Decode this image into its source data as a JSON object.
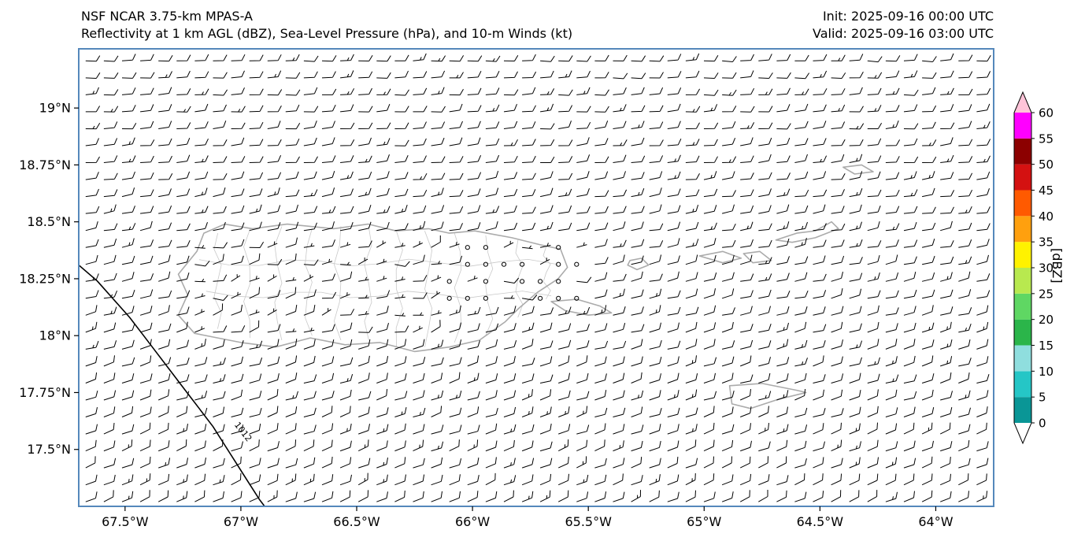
{
  "header": {
    "title_line1": "NSF NCAR 3.75-km MPAS-A",
    "title_line2": "Reflectivity at 1 km AGL (dBZ), Sea-Level Pressure (hPa), and 10-m Winds (kt)",
    "init_label": "Init: 2025-09-16 00:00 UTC",
    "valid_label": "Valid: 2025-09-16 03:00 UTC"
  },
  "chart_data": {
    "type": "map",
    "title": "NSF NCAR 3.75-km MPAS-A — Reflectivity at 1 km AGL (dBZ), Sea-Level Pressure (hPa), and 10-m Winds (kt)",
    "reflectivity_visible": false,
    "extent": {
      "lon_min": -67.7,
      "lon_max": -63.75,
      "lat_min": 17.25,
      "lat_max": 19.26
    },
    "x_ticks": [
      {
        "lon": -67.5,
        "label": "67.5°W"
      },
      {
        "lon": -67.0,
        "label": "67°W"
      },
      {
        "lon": -66.5,
        "label": "66.5°W"
      },
      {
        "lon": -66.0,
        "label": "66°W"
      },
      {
        "lon": -65.5,
        "label": "65.5°W"
      },
      {
        "lon": -65.0,
        "label": "65°W"
      },
      {
        "lon": -64.5,
        "label": "64.5°W"
      },
      {
        "lon": -64.0,
        "label": "64°W"
      }
    ],
    "y_ticks": [
      {
        "lat": 19.0,
        "label": "19°N"
      },
      {
        "lat": 18.75,
        "label": "18.75°N"
      },
      {
        "lat": 18.5,
        "label": "18.5°N"
      },
      {
        "lat": 18.25,
        "label": "18.25°N"
      },
      {
        "lat": 18.0,
        "label": "18°N"
      },
      {
        "lat": 17.75,
        "label": "17.75°N"
      },
      {
        "lat": 17.5,
        "label": "17.5°N"
      }
    ],
    "colorbar": {
      "label": "[dBZ]",
      "tick_values": [
        0,
        5,
        10,
        15,
        20,
        25,
        30,
        35,
        40,
        45,
        50,
        55,
        60
      ],
      "segment_colors": [
        "#0a9696",
        "#25c6c6",
        "#8fdede",
        "#2bb54a",
        "#5fd763",
        "#b8e94f",
        "#fff200",
        "#ffa00e",
        "#ff5a00",
        "#d41111",
        "#8c0000",
        "#ff00ff"
      ],
      "under_color": "#ffffff",
      "over_color": "#ffc4d8"
    },
    "wind_barbs": {
      "units": "kt",
      "spacing_deg_lon": 0.0785,
      "spacing_deg_lat": 0.0745,
      "base_speed_kt": 10,
      "gust_speed_kt": 15,
      "light_speed_kt": 5,
      "calm_threshold_kt": 2.5,
      "mean_direction_from_deg": 80,
      "description": "Easterly trade winds ~10-15 kt over ocean; lighter/variable 0-10 kt over interior Puerto Rico with calm circles over the east-central island"
    },
    "pressure_contour": {
      "value_hpa": 1012,
      "label": "1012",
      "label_lonlat": [
        -67.0,
        17.57
      ],
      "label_rotation_deg": 52,
      "points_lonlat": [
        [
          -67.7,
          18.31
        ],
        [
          -67.62,
          18.24
        ],
        [
          -67.55,
          18.16
        ],
        [
          -67.48,
          18.08
        ],
        [
          -67.42,
          18.0
        ],
        [
          -67.36,
          17.92
        ],
        [
          -67.3,
          17.84
        ],
        [
          -67.24,
          17.76
        ],
        [
          -67.18,
          17.68
        ],
        [
          -67.12,
          17.6
        ],
        [
          -67.07,
          17.52
        ],
        [
          -67.02,
          17.44
        ],
        [
          -66.97,
          17.36
        ],
        [
          -66.92,
          17.28
        ],
        [
          -66.89,
          17.24
        ]
      ]
    },
    "coastlines": [
      {
        "name": "puerto-rico",
        "closed": true,
        "points": [
          [
            -67.19,
            18.37
          ],
          [
            -67.16,
            18.45
          ],
          [
            -67.07,
            18.49
          ],
          [
            -66.95,
            18.47
          ],
          [
            -66.8,
            18.49
          ],
          [
            -66.6,
            18.47
          ],
          [
            -66.45,
            18.49
          ],
          [
            -66.33,
            18.46
          ],
          [
            -66.19,
            18.47
          ],
          [
            -66.1,
            18.45
          ],
          [
            -65.99,
            18.46
          ],
          [
            -65.83,
            18.43
          ],
          [
            -65.71,
            18.4
          ],
          [
            -65.62,
            18.38
          ],
          [
            -65.59,
            18.3
          ],
          [
            -65.63,
            18.25
          ],
          [
            -65.72,
            18.19
          ],
          [
            -65.8,
            18.12
          ],
          [
            -65.86,
            18.06
          ],
          [
            -65.97,
            17.98
          ],
          [
            -66.1,
            17.95
          ],
          [
            -66.25,
            17.93
          ],
          [
            -66.4,
            17.97
          ],
          [
            -66.55,
            17.96
          ],
          [
            -66.7,
            17.99
          ],
          [
            -66.85,
            17.95
          ],
          [
            -67.0,
            17.97
          ],
          [
            -67.1,
            17.99
          ],
          [
            -67.2,
            18.01
          ],
          [
            -67.27,
            18.09
          ],
          [
            -67.23,
            18.18
          ],
          [
            -67.27,
            18.27
          ]
        ]
      },
      {
        "name": "vieques",
        "closed": true,
        "points": [
          [
            -65.66,
            18.15
          ],
          [
            -65.55,
            18.16
          ],
          [
            -65.45,
            18.13
          ],
          [
            -65.4,
            18.1
          ],
          [
            -65.5,
            18.09
          ],
          [
            -65.6,
            18.11
          ]
        ]
      },
      {
        "name": "culebra",
        "closed": true,
        "points": [
          [
            -65.32,
            18.33
          ],
          [
            -65.27,
            18.34
          ],
          [
            -65.24,
            18.31
          ],
          [
            -65.29,
            18.29
          ],
          [
            -65.33,
            18.31
          ]
        ]
      },
      {
        "name": "st-thomas",
        "closed": true,
        "points": [
          [
            -65.02,
            18.35
          ],
          [
            -64.92,
            18.37
          ],
          [
            -64.84,
            18.34
          ],
          [
            -64.92,
            18.32
          ]
        ]
      },
      {
        "name": "st-john",
        "closed": true,
        "points": [
          [
            -64.83,
            18.36
          ],
          [
            -64.76,
            18.37
          ],
          [
            -64.71,
            18.33
          ],
          [
            -64.79,
            18.32
          ]
        ]
      },
      {
        "name": "tortola-virgin-gorda",
        "closed": true,
        "points": [
          [
            -64.69,
            18.42
          ],
          [
            -64.6,
            18.45
          ],
          [
            -64.52,
            18.46
          ],
          [
            -64.45,
            18.5
          ],
          [
            -64.42,
            18.47
          ],
          [
            -64.52,
            18.43
          ],
          [
            -64.62,
            18.41
          ]
        ]
      },
      {
        "name": "anegada",
        "closed": true,
        "points": [
          [
            -64.4,
            18.74
          ],
          [
            -64.32,
            18.75
          ],
          [
            -64.27,
            18.72
          ],
          [
            -64.35,
            18.71
          ]
        ]
      },
      {
        "name": "st-croix",
        "closed": true,
        "points": [
          [
            -64.89,
            17.78
          ],
          [
            -64.75,
            17.79
          ],
          [
            -64.6,
            17.76
          ],
          [
            -64.56,
            17.75
          ],
          [
            -64.68,
            17.72
          ],
          [
            -64.8,
            17.68
          ],
          [
            -64.88,
            17.7
          ]
        ]
      }
    ],
    "admin_lines_vertical": [
      {
        "lon": -67.1,
        "lat0": 18.03,
        "lat1": 18.45
      },
      {
        "lon": -66.97,
        "lat0": 17.99,
        "lat1": 18.47
      },
      {
        "lon": -66.84,
        "lat0": 17.98,
        "lat1": 18.48
      },
      {
        "lon": -66.71,
        "lat0": 18.0,
        "lat1": 18.47
      },
      {
        "lon": -66.58,
        "lat0": 17.98,
        "lat1": 18.48
      },
      {
        "lon": -66.45,
        "lat0": 17.98,
        "lat1": 18.48
      },
      {
        "lon": -66.32,
        "lat0": 17.95,
        "lat1": 18.46
      },
      {
        "lon": -66.19,
        "lat0": 17.95,
        "lat1": 18.46
      },
      {
        "lon": -66.06,
        "lat0": 17.97,
        "lat1": 18.45
      },
      {
        "lon": -65.93,
        "lat0": 18.0,
        "lat1": 18.44
      },
      {
        "lon": -65.8,
        "lat0": 18.08,
        "lat1": 18.42
      },
      {
        "lon": -65.68,
        "lat0": 18.16,
        "lat1": 18.39
      }
    ],
    "admin_lines_horizontal": [
      {
        "lat": 18.18,
        "lon0": -67.15,
        "lon1": -65.66
      },
      {
        "lat": 18.32,
        "lon0": -67.18,
        "lon1": -65.63
      }
    ],
    "style": {
      "coast_color": "#ababab",
      "admin_color": "#c9c9c9",
      "barb_color": "#000000",
      "contour_color": "#000000",
      "frame_color": "#5588bb",
      "background_color": "#ffffff"
    }
  }
}
